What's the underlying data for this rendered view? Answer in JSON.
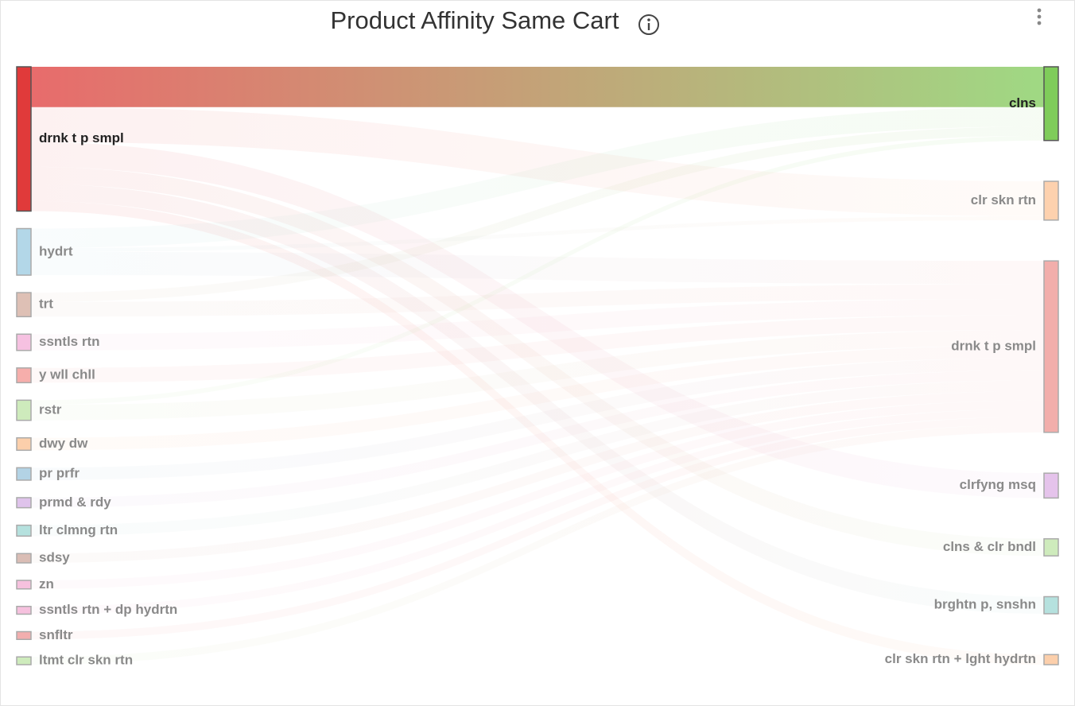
{
  "chart_data": {
    "type": "sankey",
    "title": "Product Affinity Same Cart",
    "highlighted_link": 0,
    "nodes": [
      {
        "name": "drnk t p smpl",
        "color": "#e03a3a",
        "column": 0
      },
      {
        "name": "hydrt",
        "color": "#a6d0e4",
        "column": 0
      },
      {
        "name": "trt",
        "color": "#d8b5a8",
        "column": 0
      },
      {
        "name": "ssntls rtn",
        "color": "#f5b6dc",
        "column": 0
      },
      {
        "name": "y wll chll",
        "color": "#f4a09c",
        "column": 0
      },
      {
        "name": "rstr",
        "color": "#c5e8b0",
        "column": 0
      },
      {
        "name": "dwy dw",
        "color": "#fcc79c",
        "column": 0
      },
      {
        "name": "pr prfr",
        "color": "#a6cbe0",
        "column": 0
      },
      {
        "name": "prmd & rdy",
        "color": "#d9b8e8",
        "column": 0
      },
      {
        "name": "ltr clmng rtn",
        "color": "#a8dcd8",
        "column": 0
      },
      {
        "name": "sdsy",
        "color": "#d4b2a8",
        "column": 0
      },
      {
        "name": "zn",
        "color": "#f4b6d8",
        "column": 0
      },
      {
        "name": "ssntls rtn + dp hydrtn",
        "color": "#f4b6d8",
        "column": 0
      },
      {
        "name": "snfltr",
        "color": "#f0a0a0",
        "column": 0
      },
      {
        "name": "ltmt clr skn rtn",
        "color": "#c5e8b0",
        "column": 0
      },
      {
        "name": "clns",
        "color": "#7fcc5a",
        "column": 1
      },
      {
        "name": "clr skn rtn",
        "color": "#fdc9a0",
        "column": 1
      },
      {
        "name": "drnk t p smpl",
        "color": "#f0a09c",
        "column": 1
      },
      {
        "name": "clrfyng msq",
        "color": "#e0b8e8",
        "column": 1
      },
      {
        "name": "clns & clr bndl",
        "color": "#c5e8b0",
        "column": 1
      },
      {
        "name": "brghtn p, snshn",
        "color": "#a8dcd8",
        "column": 1
      },
      {
        "name": "clr skn rtn + lght hydrtn",
        "color": "#fcc79c",
        "column": 1
      }
    ],
    "links": [
      {
        "source": 0,
        "target": 15,
        "value": 52
      },
      {
        "source": 0,
        "target": 16,
        "value": 45
      },
      {
        "source": 0,
        "target": 18,
        "value": 32
      },
      {
        "source": 0,
        "target": 19,
        "value": 22
      },
      {
        "source": 0,
        "target": 20,
        "value": 22
      },
      {
        "source": 0,
        "target": 21,
        "value": 13
      },
      {
        "source": 1,
        "target": 15,
        "value": 25
      },
      {
        "source": 1,
        "target": 16,
        "value": 5
      },
      {
        "source": 1,
        "target": 17,
        "value": 30
      },
      {
        "source": 2,
        "target": 15,
        "value": 12
      },
      {
        "source": 2,
        "target": 17,
        "value": 19
      },
      {
        "source": 3,
        "target": 17,
        "value": 21
      },
      {
        "source": 4,
        "target": 17,
        "value": 19
      },
      {
        "source": 5,
        "target": 15,
        "value": 6
      },
      {
        "source": 5,
        "target": 17,
        "value": 20
      },
      {
        "source": 6,
        "target": 17,
        "value": 16
      },
      {
        "source": 7,
        "target": 17,
        "value": 16
      },
      {
        "source": 8,
        "target": 17,
        "value": 13
      },
      {
        "source": 9,
        "target": 17,
        "value": 14
      },
      {
        "source": 10,
        "target": 17,
        "value": 12
      },
      {
        "source": 11,
        "target": 17,
        "value": 11
      },
      {
        "source": 12,
        "target": 17,
        "value": 10
      },
      {
        "source": 13,
        "target": 17,
        "value": 10
      },
      {
        "source": 14,
        "target": 17,
        "value": 10
      }
    ]
  }
}
